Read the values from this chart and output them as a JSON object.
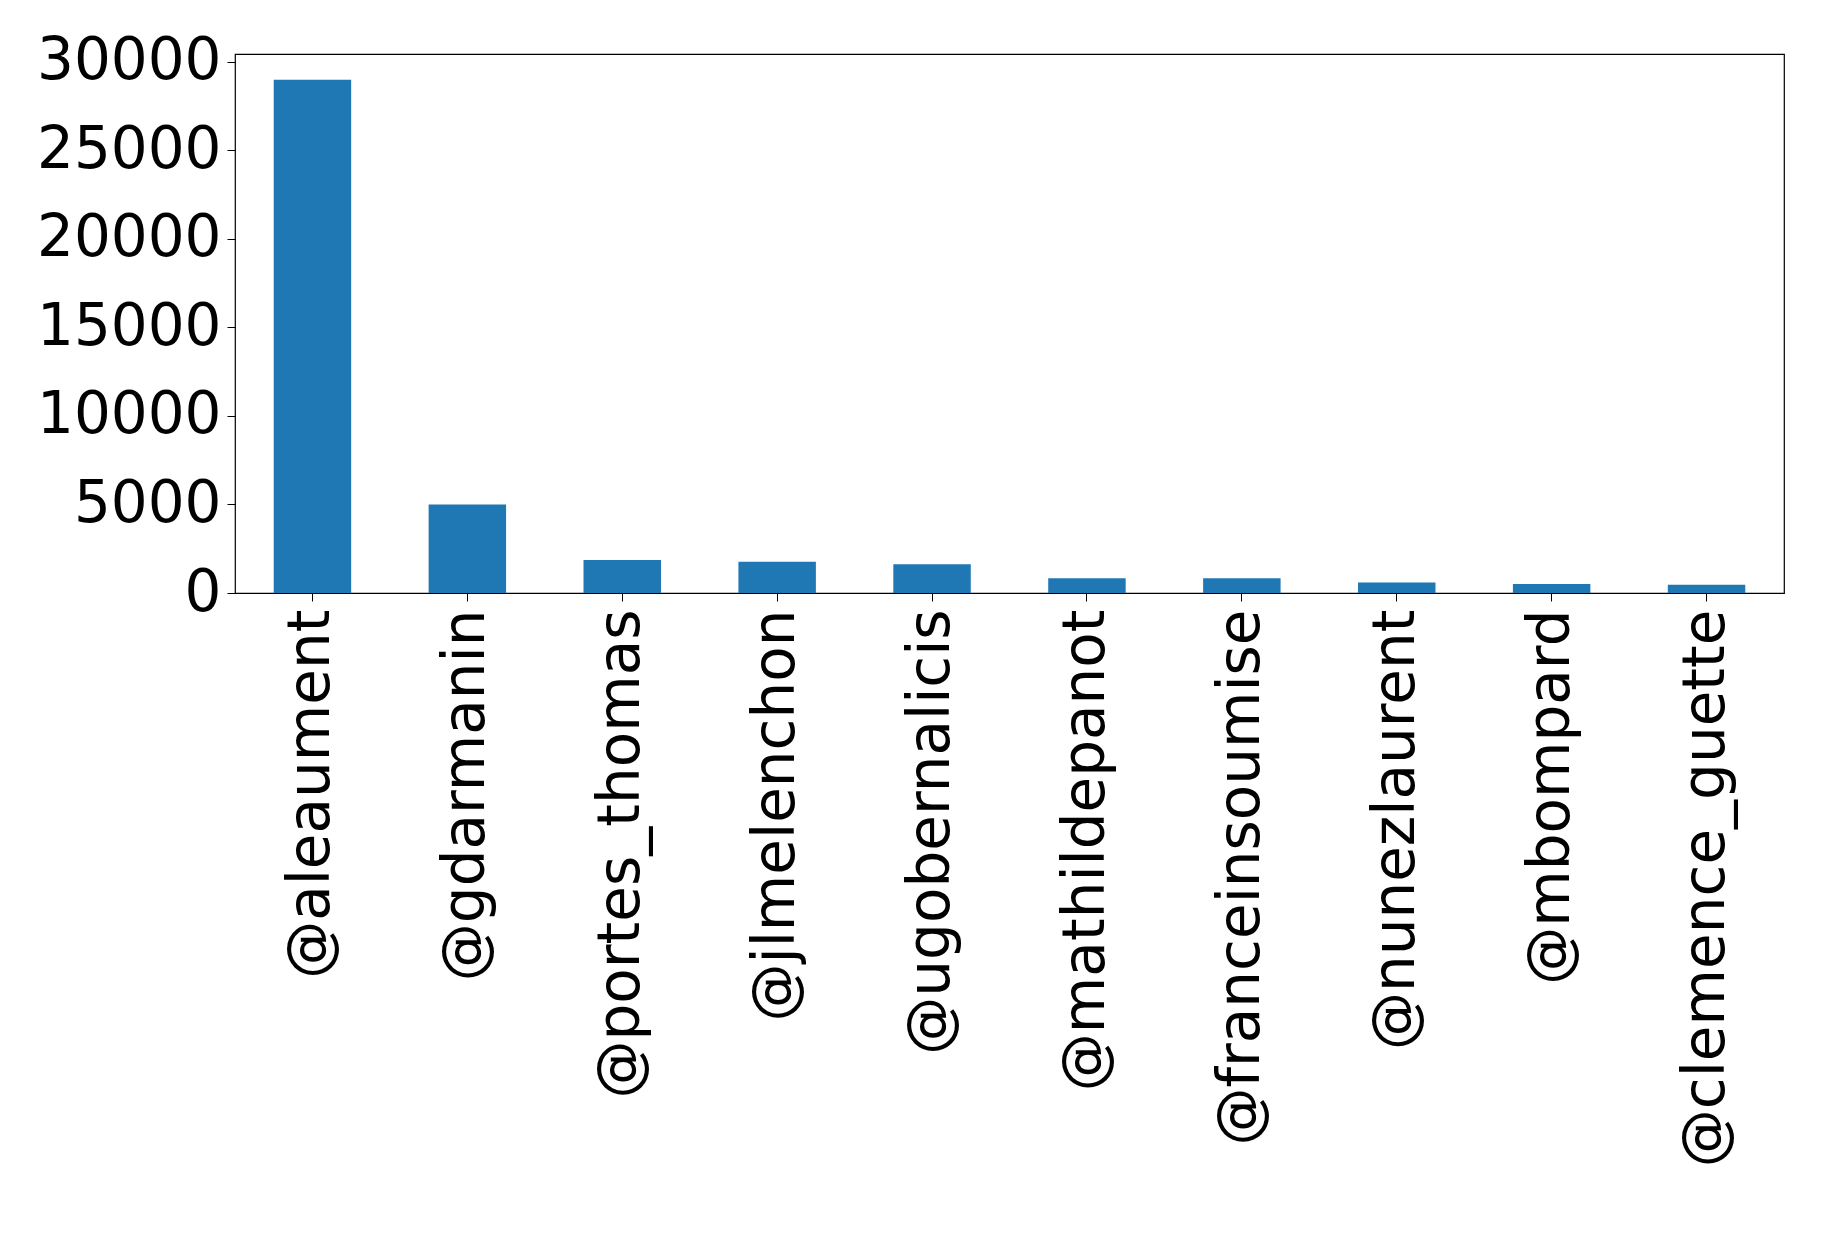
{
  "chart_data": {
    "type": "bar",
    "categories": [
      "@aleaument",
      "@gdarmanin",
      "@portes_thomas",
      "@jlmelenchon",
      "@ugobernalicis",
      "@mathildepanot",
      "@franceinsoumise",
      "@nunezlaurent",
      "@mbompard",
      "@clemence_guette"
    ],
    "values": [
      29000,
      5000,
      1860,
      1770,
      1630,
      840,
      840,
      600,
      510,
      470
    ],
    "color": "#1f77b4",
    "ylim": [
      0,
      30450
    ],
    "yticks": [
      0,
      5000,
      10000,
      15000,
      20000,
      25000,
      30000
    ],
    "grid": false
  }
}
